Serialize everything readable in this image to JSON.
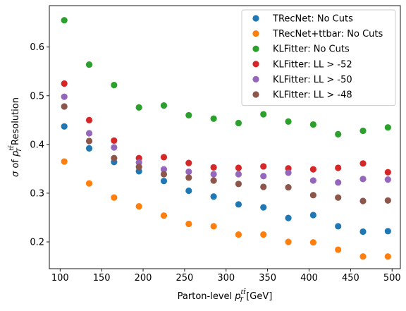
{
  "chart_data": {
    "type": "scatter",
    "x": [
      105,
      135,
      165,
      195,
      225,
      255,
      285,
      315,
      345,
      375,
      405,
      435,
      465,
      495
    ],
    "series": [
      {
        "name": "TRecNet: No Cuts",
        "color": "#1f77b4",
        "values": [
          0.437,
          0.392,
          0.364,
          0.345,
          0.325,
          0.305,
          0.293,
          0.277,
          0.271,
          0.249,
          0.255,
          0.232,
          0.221,
          0.222
        ]
      },
      {
        "name": "TRecNet+ttbar: No Cuts",
        "color": "#ff7f0e",
        "values": [
          0.365,
          0.32,
          0.291,
          0.273,
          0.254,
          0.237,
          0.232,
          0.215,
          0.215,
          0.2,
          0.199,
          0.184,
          0.17,
          0.17
        ]
      },
      {
        "name": "KLFitter: No Cuts",
        "color": "#2ca02c",
        "values": [
          0.655,
          0.564,
          0.522,
          0.476,
          0.48,
          0.46,
          0.453,
          0.444,
          0.462,
          0.447,
          0.441,
          0.421,
          0.428,
          0.435
        ]
      },
      {
        "name": "KLFitter: LL > -52",
        "color": "#d62728",
        "values": [
          0.525,
          0.45,
          0.408,
          0.372,
          0.374,
          0.362,
          0.353,
          0.352,
          0.355,
          0.351,
          0.349,
          0.352,
          0.361,
          0.343
        ]
      },
      {
        "name": "KLFitter: LL > -50",
        "color": "#9467bd",
        "values": [
          0.498,
          0.423,
          0.394,
          0.363,
          0.349,
          0.344,
          0.339,
          0.339,
          0.335,
          0.342,
          0.326,
          0.322,
          0.329,
          0.328
        ]
      },
      {
        "name": "KLFitter: LL > -48",
        "color": "#8c564b",
        "values": [
          0.478,
          0.407,
          0.372,
          0.354,
          0.339,
          0.332,
          0.326,
          0.319,
          0.313,
          0.312,
          0.296,
          0.291,
          0.284,
          0.285
        ]
      }
    ],
    "xlabel": "Parton-level p_T^{tt̄} [GeV]",
    "ylabel": "σ of p_T^{tt̄} Resolution",
    "xlim": [
      87,
      510
    ],
    "ylim": [
      0.145,
      0.685
    ],
    "xticks": [
      100,
      150,
      200,
      250,
      300,
      350,
      400,
      450,
      500
    ],
    "yticks": [
      0.2,
      0.3,
      0.4,
      0.5,
      0.6
    ],
    "grid": false,
    "legend_position": "top-right"
  }
}
